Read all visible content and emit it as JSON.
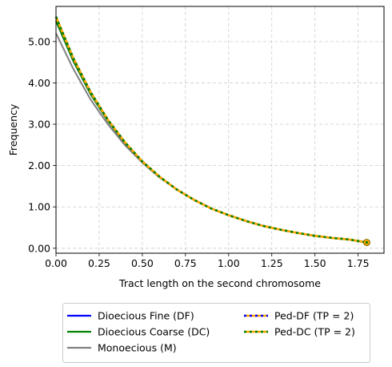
{
  "chart_data": {
    "type": "line",
    "title": "",
    "xlabel": "Tract length on the second chromosome",
    "ylabel": "Frequency",
    "xlim": [
      0,
      1.9
    ],
    "ylim": [
      -0.12,
      5.85
    ],
    "xticks": [
      0,
      0.25,
      0.5,
      0.75,
      1.0,
      1.25,
      1.5,
      1.75
    ],
    "xtick_labels": [
      "0.00",
      "0.25",
      "0.50",
      "0.75",
      "1.00",
      "1.25",
      "1.50",
      "1.75"
    ],
    "yticks": [
      0,
      1,
      2,
      3,
      4,
      5
    ],
    "ytick_labels": [
      "0.00",
      "1.00",
      "2.00",
      "3.00",
      "4.00",
      "5.00"
    ],
    "grid": true,
    "legend_position": "below the plot, two columns",
    "x": [
      0,
      0.1,
      0.2,
      0.3,
      0.4,
      0.5,
      0.6,
      0.7,
      0.8,
      0.9,
      1.0,
      1.1,
      1.2,
      1.3,
      1.4,
      1.5,
      1.6,
      1.7,
      1.8
    ],
    "series": [
      {
        "name": "Dioecious Fine (DF)",
        "color": "#0000ff",
        "style": "solid",
        "values": [
          5.5,
          4.53,
          3.73,
          3.08,
          2.54,
          2.09,
          1.72,
          1.42,
          1.17,
          0.96,
          0.8,
          0.66,
          0.54,
          0.45,
          0.37,
          0.3,
          0.25,
          0.21,
          0.14
        ]
      },
      {
        "name": "Dioecious Coarse (DC)",
        "color": "#008000",
        "style": "solid",
        "values": [
          5.5,
          4.53,
          3.73,
          3.08,
          2.54,
          2.09,
          1.72,
          1.42,
          1.17,
          0.96,
          0.8,
          0.66,
          0.54,
          0.45,
          0.37,
          0.3,
          0.25,
          0.21,
          0.14
        ]
      },
      {
        "name": "Monoecious (M)",
        "color": "#808080",
        "style": "solid",
        "values": [
          5.2,
          4.34,
          3.6,
          3.0,
          2.49,
          2.07,
          1.71,
          1.42,
          1.17,
          0.96,
          0.8,
          0.66,
          0.54,
          0.45,
          0.37,
          0.3,
          0.25,
          0.21,
          0.14
        ]
      },
      {
        "name": "Ped-DF (TP = 2)",
        "color": "#0000ff",
        "dash_color": "#ffa500",
        "style": "dashed",
        "values": [
          5.6,
          4.6,
          3.78,
          3.11,
          2.56,
          2.1,
          1.73,
          1.42,
          1.17,
          0.96,
          0.8,
          0.66,
          0.54,
          0.45,
          0.37,
          0.3,
          0.25,
          0.21,
          0.14
        ]
      },
      {
        "name": "Ped-DC (TP = 2)",
        "color": "#008000",
        "dash_color": "#ffa500",
        "style": "dashed",
        "values": [
          5.6,
          4.6,
          3.78,
          3.11,
          2.56,
          2.1,
          1.73,
          1.42,
          1.17,
          0.96,
          0.8,
          0.66,
          0.54,
          0.45,
          0.37,
          0.3,
          0.25,
          0.21,
          0.14
        ]
      }
    ],
    "end_marker": {
      "x": 1.8,
      "y": 0.14,
      "color": "#ffa500"
    }
  }
}
